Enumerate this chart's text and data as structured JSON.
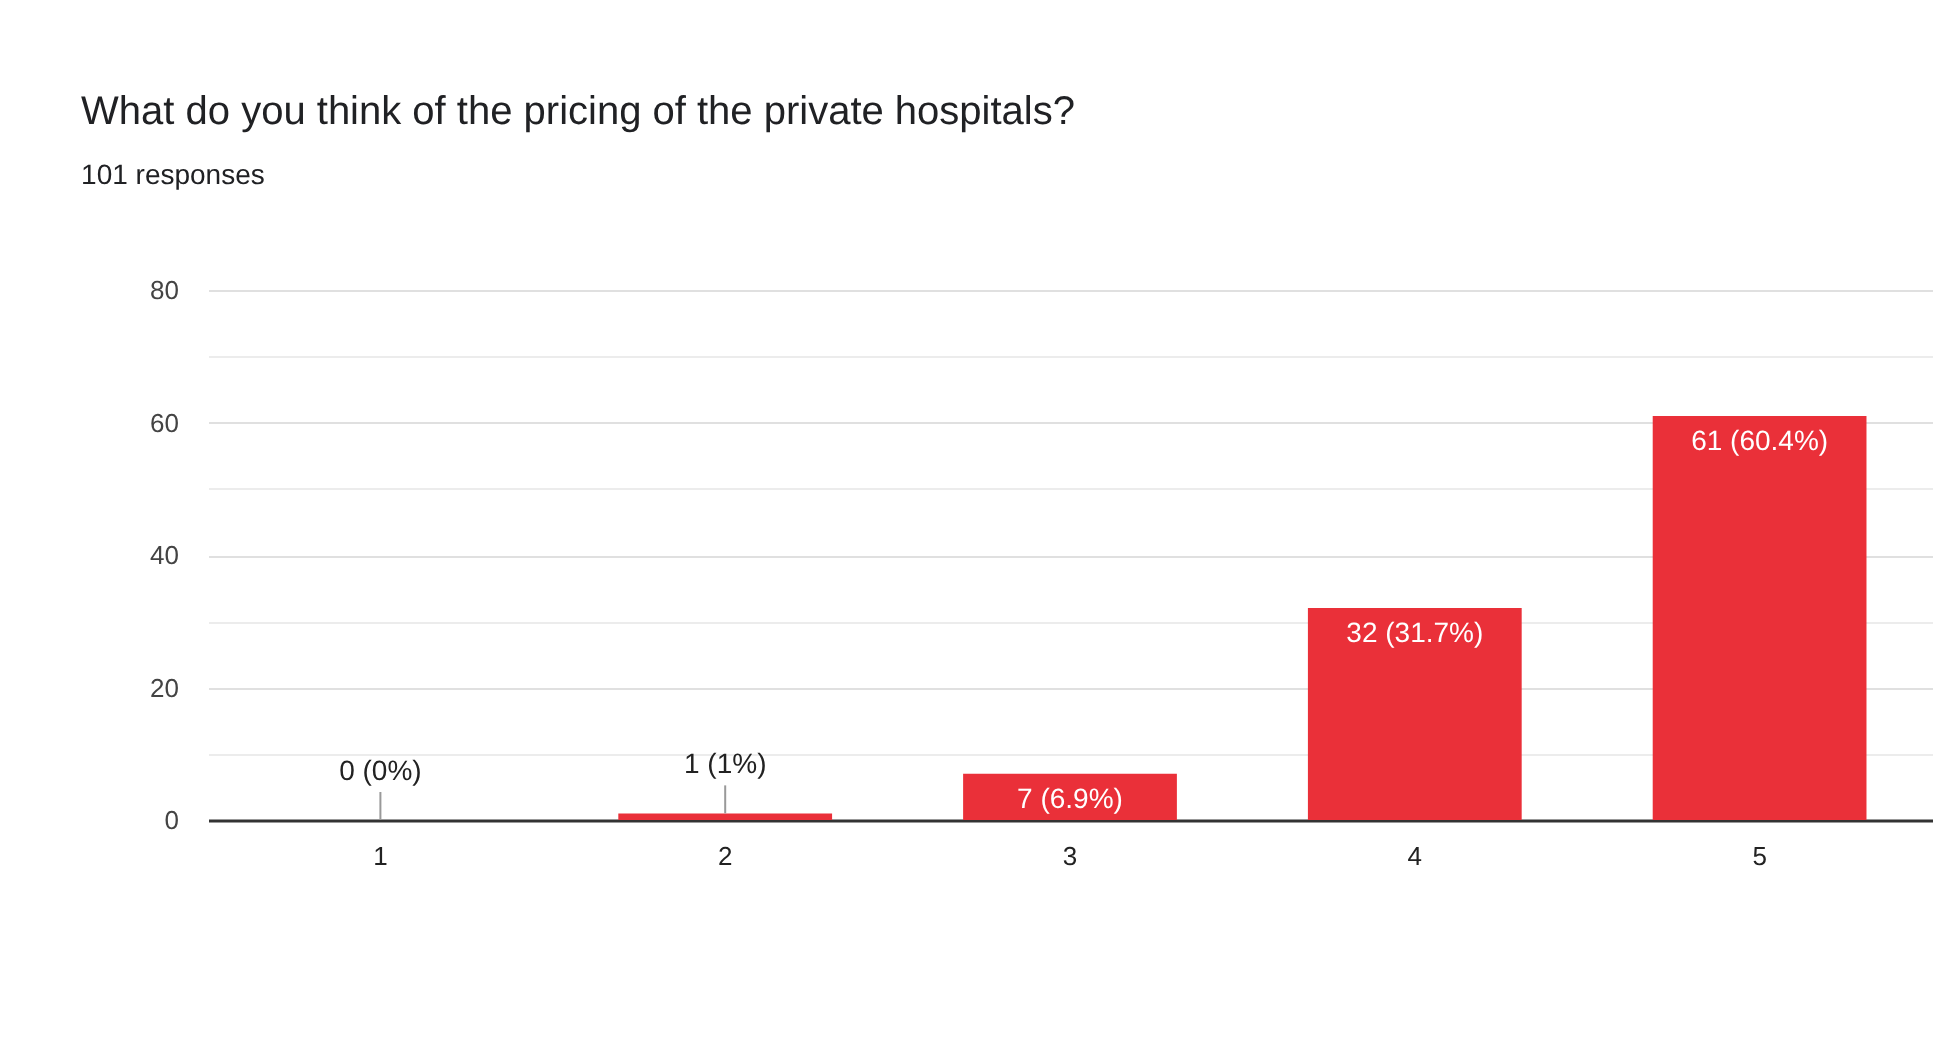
{
  "chart_data": {
    "type": "bar",
    "title": "What do you think of the pricing of the private hospitals?",
    "subtitle": "101 responses",
    "categories": [
      "1",
      "2",
      "3",
      "4",
      "5"
    ],
    "values": [
      0,
      1,
      7,
      32,
      61
    ],
    "value_labels": [
      "0 (0%)",
      "1 (1%)",
      "7 (6.9%)",
      "32 (31.7%)",
      "61 (60.4%)"
    ],
    "color": "#ea3039",
    "ylim": [
      0,
      80
    ],
    "yticks": [
      0,
      {
        "value": 10,
        "label": null
      },
      20,
      {
        "value": 30,
        "label": null
      },
      40,
      {
        "value": 50,
        "label": null
      },
      60,
      {
        "value": 70,
        "label": null
      },
      80
    ],
    "grid": "y"
  }
}
